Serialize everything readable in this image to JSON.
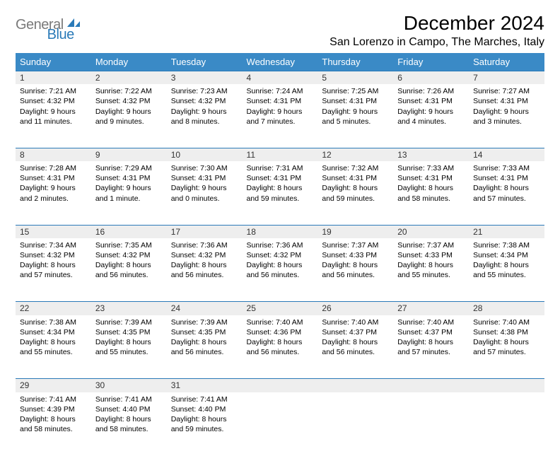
{
  "logo": {
    "part1": "General",
    "part2": "Blue"
  },
  "title": "December 2024",
  "location": "San Lorenzo in Campo, The Marches, Italy",
  "colors": {
    "header_bg": "#3a8ac6",
    "header_text": "#ffffff",
    "rule": "#2a7ab8",
    "daynum_bg": "#eeeeee",
    "logo_gray": "#7a7a7a",
    "logo_blue": "#2a7ab8"
  },
  "weekdays": [
    "Sunday",
    "Monday",
    "Tuesday",
    "Wednesday",
    "Thursday",
    "Friday",
    "Saturday"
  ],
  "weeks": [
    [
      {
        "n": "1",
        "sr": "7:21 AM",
        "ss": "4:32 PM",
        "dl": "9 hours and 11 minutes."
      },
      {
        "n": "2",
        "sr": "7:22 AM",
        "ss": "4:32 PM",
        "dl": "9 hours and 9 minutes."
      },
      {
        "n": "3",
        "sr": "7:23 AM",
        "ss": "4:32 PM",
        "dl": "9 hours and 8 minutes."
      },
      {
        "n": "4",
        "sr": "7:24 AM",
        "ss": "4:31 PM",
        "dl": "9 hours and 7 minutes."
      },
      {
        "n": "5",
        "sr": "7:25 AM",
        "ss": "4:31 PM",
        "dl": "9 hours and 5 minutes."
      },
      {
        "n": "6",
        "sr": "7:26 AM",
        "ss": "4:31 PM",
        "dl": "9 hours and 4 minutes."
      },
      {
        "n": "7",
        "sr": "7:27 AM",
        "ss": "4:31 PM",
        "dl": "9 hours and 3 minutes."
      }
    ],
    [
      {
        "n": "8",
        "sr": "7:28 AM",
        "ss": "4:31 PM",
        "dl": "9 hours and 2 minutes."
      },
      {
        "n": "9",
        "sr": "7:29 AM",
        "ss": "4:31 PM",
        "dl": "9 hours and 1 minute."
      },
      {
        "n": "10",
        "sr": "7:30 AM",
        "ss": "4:31 PM",
        "dl": "9 hours and 0 minutes."
      },
      {
        "n": "11",
        "sr": "7:31 AM",
        "ss": "4:31 PM",
        "dl": "8 hours and 59 minutes."
      },
      {
        "n": "12",
        "sr": "7:32 AM",
        "ss": "4:31 PM",
        "dl": "8 hours and 59 minutes."
      },
      {
        "n": "13",
        "sr": "7:33 AM",
        "ss": "4:31 PM",
        "dl": "8 hours and 58 minutes."
      },
      {
        "n": "14",
        "sr": "7:33 AM",
        "ss": "4:31 PM",
        "dl": "8 hours and 57 minutes."
      }
    ],
    [
      {
        "n": "15",
        "sr": "7:34 AM",
        "ss": "4:32 PM",
        "dl": "8 hours and 57 minutes."
      },
      {
        "n": "16",
        "sr": "7:35 AM",
        "ss": "4:32 PM",
        "dl": "8 hours and 56 minutes."
      },
      {
        "n": "17",
        "sr": "7:36 AM",
        "ss": "4:32 PM",
        "dl": "8 hours and 56 minutes."
      },
      {
        "n": "18",
        "sr": "7:36 AM",
        "ss": "4:32 PM",
        "dl": "8 hours and 56 minutes."
      },
      {
        "n": "19",
        "sr": "7:37 AM",
        "ss": "4:33 PM",
        "dl": "8 hours and 56 minutes."
      },
      {
        "n": "20",
        "sr": "7:37 AM",
        "ss": "4:33 PM",
        "dl": "8 hours and 55 minutes."
      },
      {
        "n": "21",
        "sr": "7:38 AM",
        "ss": "4:34 PM",
        "dl": "8 hours and 55 minutes."
      }
    ],
    [
      {
        "n": "22",
        "sr": "7:38 AM",
        "ss": "4:34 PM",
        "dl": "8 hours and 55 minutes."
      },
      {
        "n": "23",
        "sr": "7:39 AM",
        "ss": "4:35 PM",
        "dl": "8 hours and 55 minutes."
      },
      {
        "n": "24",
        "sr": "7:39 AM",
        "ss": "4:35 PM",
        "dl": "8 hours and 56 minutes."
      },
      {
        "n": "25",
        "sr": "7:40 AM",
        "ss": "4:36 PM",
        "dl": "8 hours and 56 minutes."
      },
      {
        "n": "26",
        "sr": "7:40 AM",
        "ss": "4:37 PM",
        "dl": "8 hours and 56 minutes."
      },
      {
        "n": "27",
        "sr": "7:40 AM",
        "ss": "4:37 PM",
        "dl": "8 hours and 57 minutes."
      },
      {
        "n": "28",
        "sr": "7:40 AM",
        "ss": "4:38 PM",
        "dl": "8 hours and 57 minutes."
      }
    ],
    [
      {
        "n": "29",
        "sr": "7:41 AM",
        "ss": "4:39 PM",
        "dl": "8 hours and 58 minutes."
      },
      {
        "n": "30",
        "sr": "7:41 AM",
        "ss": "4:40 PM",
        "dl": "8 hours and 58 minutes."
      },
      {
        "n": "31",
        "sr": "7:41 AM",
        "ss": "4:40 PM",
        "dl": "8 hours and 59 minutes."
      },
      null,
      null,
      null,
      null
    ]
  ],
  "labels": {
    "sunrise": "Sunrise:",
    "sunset": "Sunset:",
    "daylight": "Daylight:"
  }
}
